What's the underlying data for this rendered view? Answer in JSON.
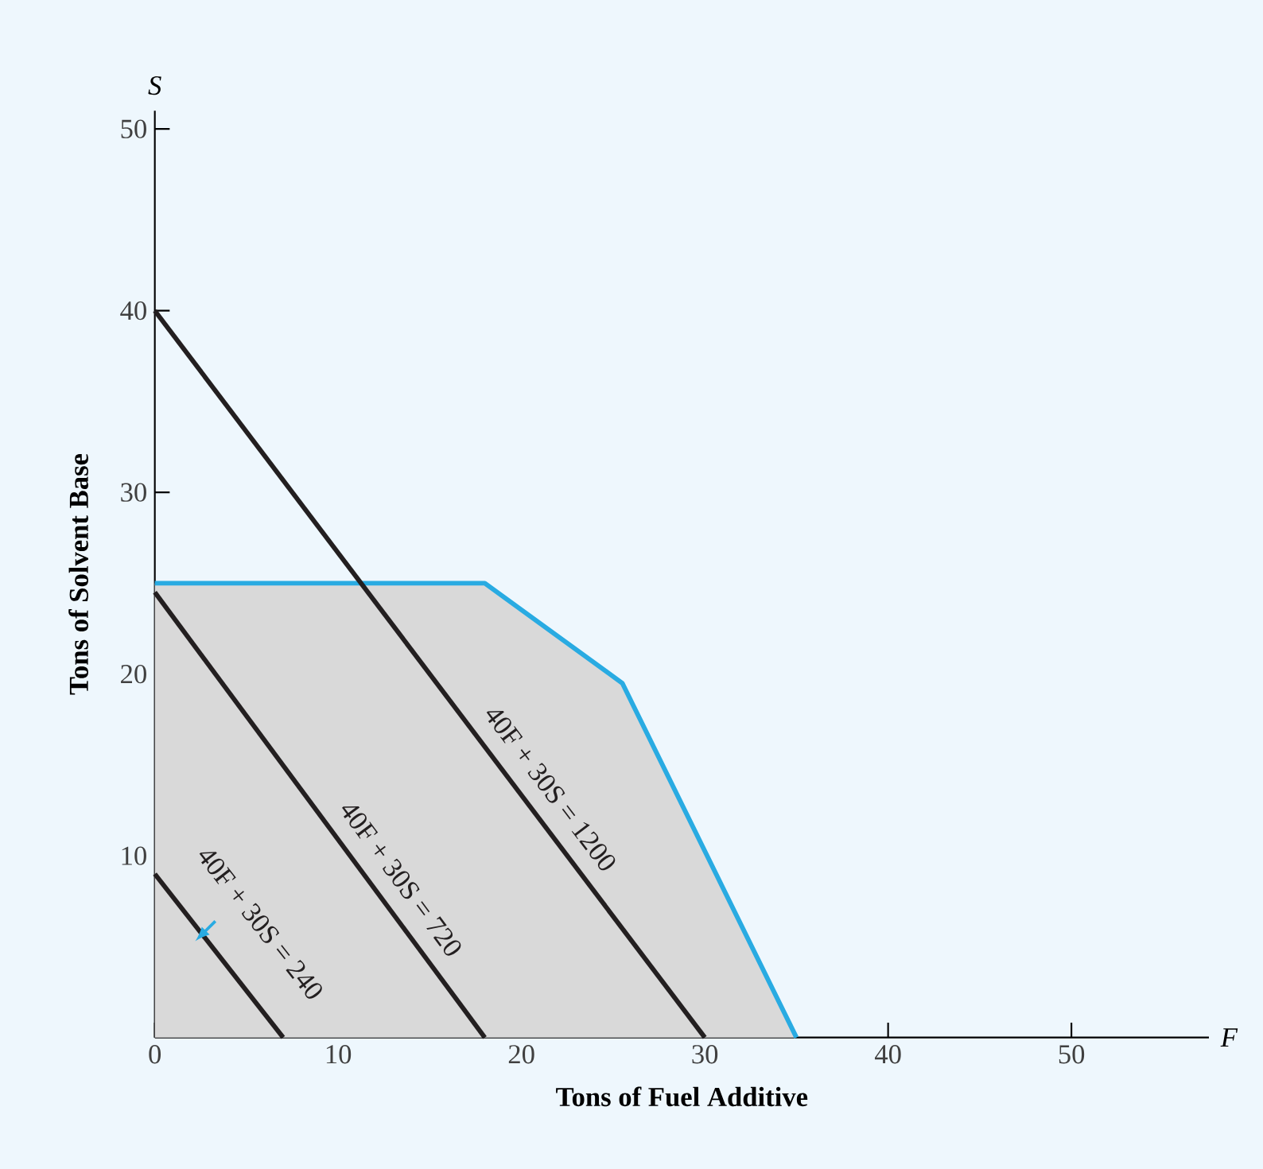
{
  "chart_data": {
    "type": "line",
    "xlabel": "Tons of Fuel Additive",
    "ylabel": "Tons of Solvent Base",
    "xlim": [
      0,
      57.5
    ],
    "ylim": [
      0,
      51
    ],
    "xticks": [
      0,
      10,
      20,
      30,
      40,
      50
    ],
    "yticks": [
      10,
      20,
      30,
      40,
      50
    ],
    "annotations": [
      "S",
      "F"
    ],
    "series": [
      {
        "type": "area",
        "color": "#29abe2",
        "x": [
          0,
          18,
          25.5,
          35
        ],
        "values": [
          25,
          25,
          19.5,
          0
        ]
      },
      {
        "name": "40F + 30S = 1200",
        "color": "#231f20",
        "x": [
          0,
          30
        ],
        "values": [
          40,
          0
        ]
      },
      {
        "name": "40F + 30S = 720",
        "color": "#231f20",
        "x": [
          0,
          18
        ],
        "values": [
          24.5,
          0
        ]
      },
      {
        "name": "40F + 30S = 240",
        "color": "#231f20",
        "x": [
          0,
          7
        ],
        "values": [
          9,
          0
        ]
      }
    ]
  }
}
